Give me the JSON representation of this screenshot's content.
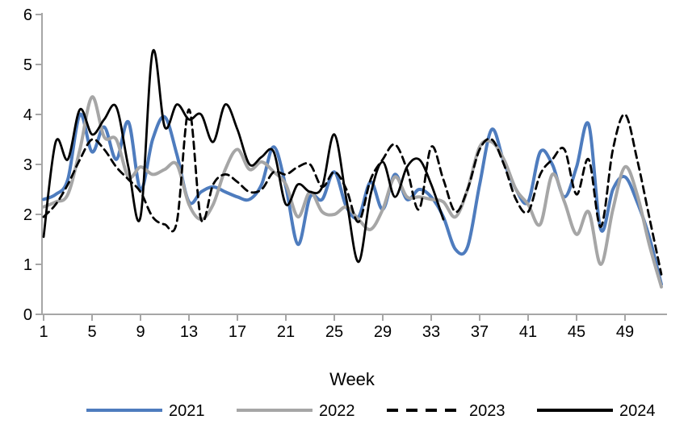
{
  "chart_data": {
    "type": "line",
    "title": "",
    "xlabel": "Week",
    "ylabel": "",
    "xlim": [
      1,
      52
    ],
    "ylim": [
      0,
      6
    ],
    "x_ticks": [
      1,
      5,
      9,
      13,
      17,
      21,
      25,
      29,
      33,
      37,
      41,
      45,
      49
    ],
    "y_ticks": [
      0,
      1,
      2,
      3,
      4,
      5,
      6
    ],
    "grid": false,
    "legend_position": "bottom",
    "axis_color": "#A6A6A6",
    "text_color": "#000000",
    "x": [
      1,
      2,
      3,
      4,
      5,
      6,
      7,
      8,
      9,
      10,
      11,
      12,
      13,
      14,
      15,
      16,
      17,
      18,
      19,
      20,
      21,
      22,
      23,
      24,
      25,
      26,
      27,
      28,
      29,
      30,
      31,
      32,
      33,
      34,
      35,
      36,
      37,
      38,
      39,
      40,
      41,
      42,
      43,
      44,
      45,
      46,
      47,
      48,
      49,
      50,
      51,
      52
    ],
    "series": [
      {
        "name": "2021",
        "color": "#4E7CBE",
        "style": "solid",
        "line_width": 4,
        "values": [
          2.3,
          2.4,
          2.7,
          4.0,
          3.25,
          3.75,
          3.1,
          3.85,
          2.5,
          3.5,
          3.95,
          3.2,
          2.25,
          2.45,
          2.55,
          2.45,
          2.35,
          2.3,
          2.6,
          3.35,
          2.55,
          1.4,
          2.35,
          2.3,
          2.85,
          2.15,
          1.95,
          2.65,
          2.1,
          2.8,
          2.3,
          2.5,
          2.35,
          1.95,
          1.3,
          1.35,
          2.6,
          3.7,
          3.05,
          2.5,
          2.25,
          3.25,
          3.0,
          2.35,
          2.95,
          3.8,
          1.7,
          2.5,
          2.75,
          2.25,
          1.55,
          0.6
        ]
      },
      {
        "name": "2022",
        "color": "#A6A6A6",
        "style": "solid",
        "line_width": 4,
        "values": [
          2.15,
          2.25,
          2.4,
          3.3,
          4.35,
          3.55,
          3.5,
          2.75,
          2.95,
          2.8,
          2.9,
          3.0,
          2.2,
          1.9,
          2.2,
          2.9,
          3.3,
          2.9,
          3.05,
          2.85,
          2.6,
          1.95,
          2.45,
          2.05,
          2.0,
          2.15,
          1.9,
          1.7,
          2.1,
          2.75,
          2.35,
          2.35,
          2.3,
          2.25,
          1.95,
          2.5,
          3.35,
          3.45,
          3.1,
          2.5,
          2.2,
          1.8,
          2.8,
          2.25,
          1.6,
          2.05,
          1.0,
          2.1,
          2.95,
          2.4,
          1.4,
          0.55
        ]
      },
      {
        "name": "2023",
        "color": "#000000",
        "style": "dashed",
        "line_width": 2.8,
        "values": [
          1.95,
          2.2,
          2.6,
          3.1,
          3.5,
          3.3,
          2.95,
          2.7,
          2.45,
          1.95,
          1.8,
          1.85,
          4.1,
          1.9,
          2.6,
          2.8,
          2.65,
          2.45,
          2.5,
          2.85,
          2.8,
          2.95,
          3.0,
          2.55,
          2.85,
          2.5,
          1.85,
          2.7,
          3.1,
          3.4,
          2.9,
          2.1,
          3.35,
          2.7,
          2.05,
          2.5,
          3.3,
          3.5,
          3.0,
          2.3,
          2.05,
          2.8,
          3.1,
          3.3,
          2.4,
          3.1,
          1.75,
          3.3,
          4.0,
          3.1,
          1.95,
          0.8
        ]
      },
      {
        "name": "2024",
        "color": "#000000",
        "style": "solid",
        "line_width": 2.8,
        "values": [
          1.55,
          3.45,
          3.1,
          4.1,
          3.6,
          3.9,
          4.15,
          2.95,
          1.95,
          5.25,
          3.75,
          4.2,
          3.9,
          4.0,
          3.45,
          4.2,
          3.7,
          3.0,
          3.15,
          3.25,
          2.2,
          2.6,
          2.45,
          2.55,
          3.6,
          2.3,
          1.05,
          2.4,
          3.05,
          2.35,
          2.95,
          3.1,
          2.6,
          1.9
        ]
      }
    ]
  }
}
